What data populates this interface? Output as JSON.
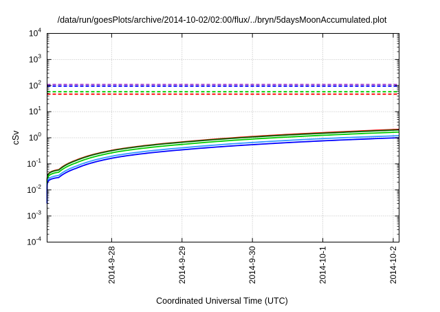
{
  "chart_data": {
    "type": "line",
    "title": "/data/run/goesPlots/archive/2014-10-02/02:00/flux/../bryn/5daysMoonAccumulated.plot",
    "xlabel": "Coordinated Universal Time (UTC)",
    "ylabel": "cSv",
    "y_scale": "log",
    "ylim": [
      0.0001,
      10000
    ],
    "y_ticks": [
      {
        "base": "10",
        "exp": "-4",
        "value": 0.0001
      },
      {
        "base": "10",
        "exp": "-3",
        "value": 0.001
      },
      {
        "base": "10",
        "exp": "-2",
        "value": 0.01
      },
      {
        "base": "10",
        "exp": "-1",
        "value": 0.1
      },
      {
        "base": "10",
        "exp": "0",
        "value": 1
      },
      {
        "base": "10",
        "exp": "1",
        "value": 10
      },
      {
        "base": "10",
        "exp": "2",
        "value": 100
      },
      {
        "base": "10",
        "exp": "3",
        "value": 1000
      },
      {
        "base": "10",
        "exp": "4",
        "value": 10000
      }
    ],
    "xlim": [
      "2014-09-27 02:00",
      "2014-10-02 02:00"
    ],
    "x_ticks": [
      "2014-9-28",
      "2014-9-29",
      "2014-9-30",
      "2014-10-1",
      "2014-10-2"
    ],
    "grid": true,
    "legend": "none",
    "series": [
      {
        "color": "#ff0000",
        "style": "solid",
        "points": [
          [
            "2014-09-27 02:00",
            0.0035
          ],
          [
            "2014-09-27 06:00",
            0.06
          ],
          [
            "2014-09-27 12:00",
            0.14
          ],
          [
            "2014-09-28 02:00",
            0.36
          ],
          [
            "2014-09-29 02:00",
            0.72
          ],
          [
            "2014-09-30 02:00",
            1.15
          ],
          [
            "2014-10-01 02:00",
            1.6
          ],
          [
            "2014-10-02 02:00",
            2.1
          ]
        ]
      },
      {
        "color": "#006400",
        "style": "solid",
        "points": [
          [
            "2014-09-27 02:00",
            0.0035
          ],
          [
            "2014-09-27 06:00",
            0.058
          ],
          [
            "2014-09-27 12:00",
            0.135
          ],
          [
            "2014-09-28 02:00",
            0.35
          ],
          [
            "2014-09-29 02:00",
            0.7
          ],
          [
            "2014-09-30 02:00",
            1.1
          ],
          [
            "2014-10-01 02:00",
            1.52
          ],
          [
            "2014-10-02 02:00",
            2.0
          ]
        ]
      },
      {
        "color": "#00cc00",
        "style": "solid",
        "points": [
          [
            "2014-09-27 02:00",
            0.003
          ],
          [
            "2014-09-27 06:00",
            0.048
          ],
          [
            "2014-09-27 12:00",
            0.11
          ],
          [
            "2014-09-28 02:00",
            0.29
          ],
          [
            "2014-09-29 02:00",
            0.58
          ],
          [
            "2014-09-30 02:00",
            0.92
          ],
          [
            "2014-10-01 02:00",
            1.27
          ],
          [
            "2014-10-02 02:00",
            1.65
          ]
        ]
      },
      {
        "color": "#3399ff",
        "style": "solid",
        "points": [
          [
            "2014-09-27 02:00",
            0.003
          ],
          [
            "2014-09-27 06:00",
            0.036
          ],
          [
            "2014-09-27 12:00",
            0.082
          ],
          [
            "2014-09-28 02:00",
            0.215
          ],
          [
            "2014-09-29 02:00",
            0.43
          ],
          [
            "2014-09-30 02:00",
            0.68
          ],
          [
            "2014-10-01 02:00",
            0.95
          ],
          [
            "2014-10-02 02:00",
            1.2
          ]
        ]
      },
      {
        "color": "#0000ff",
        "style": "solid",
        "points": [
          [
            "2014-09-27 02:00",
            0.003
          ],
          [
            "2014-09-27 06:00",
            0.03
          ],
          [
            "2014-09-27 12:00",
            0.068
          ],
          [
            "2014-09-28 02:00",
            0.18
          ],
          [
            "2014-09-29 02:00",
            0.36
          ],
          [
            "2014-09-30 02:00",
            0.56
          ],
          [
            "2014-10-01 02:00",
            0.78
          ],
          [
            "2014-10-02 02:00",
            1.0
          ]
        ]
      },
      {
        "color": "#9933cc",
        "style": "dashed",
        "points": [
          [
            "2014-09-27 02:00",
            110
          ],
          [
            "2014-10-02 02:00",
            110
          ]
        ]
      },
      {
        "color": "#0000ff",
        "style": "dashed",
        "points": [
          [
            "2014-09-27 02:00",
            95
          ],
          [
            "2014-10-02 02:00",
            95
          ]
        ]
      },
      {
        "color": "#00cc00",
        "style": "dashed",
        "points": [
          [
            "2014-09-27 02:00",
            58
          ],
          [
            "2014-10-02 02:00",
            58
          ]
        ]
      },
      {
        "color": "#ff0000",
        "style": "dashed",
        "points": [
          [
            "2014-09-27 02:00",
            47
          ],
          [
            "2014-10-02 02:00",
            47
          ]
        ]
      }
    ]
  }
}
